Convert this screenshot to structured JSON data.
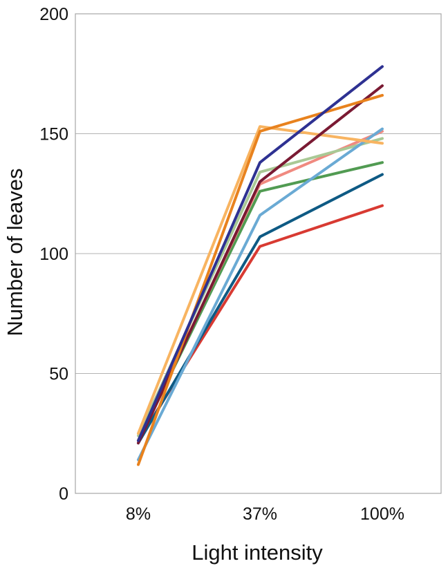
{
  "chart_data": {
    "type": "line",
    "title": "",
    "xlabel": "Light intensity",
    "ylabel": "Number of leaves",
    "categories": [
      "8%",
      "37%",
      "100%"
    ],
    "ylim": [
      0,
      200
    ],
    "yticks": [
      0,
      50,
      100,
      150,
      200
    ],
    "grid": "horizontal",
    "legend": "none",
    "series": [
      {
        "color": "#2e3192",
        "values": [
          22,
          138,
          178
        ]
      },
      {
        "color": "#e8821e",
        "values": [
          12,
          151,
          166
        ]
      },
      {
        "color": "#7a1a33",
        "values": [
          21,
          130,
          170
        ]
      },
      {
        "color": "#f8b461",
        "values": [
          25,
          153,
          146
        ]
      },
      {
        "color": "#6aaad4",
        "values": [
          14,
          116,
          152
        ]
      },
      {
        "color": "#a9c995",
        "values": [
          24,
          134,
          148
        ]
      },
      {
        "color": "#f08a80",
        "values": [
          22,
          129,
          151
        ]
      },
      {
        "color": "#519b52",
        "values": [
          22,
          126,
          138
        ]
      },
      {
        "color": "#0e5a84",
        "values": [
          21,
          107,
          133
        ]
      },
      {
        "color": "#d83a32",
        "values": [
          22,
          103,
          120
        ]
      }
    ]
  }
}
